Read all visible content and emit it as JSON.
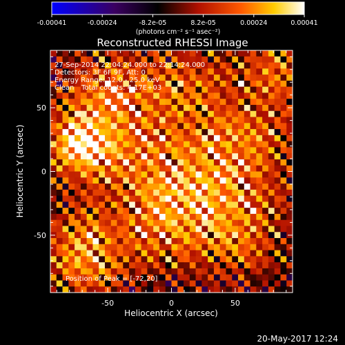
{
  "chart_data": {
    "type": "heatmap",
    "title": "Reconstructed RHESSI Image",
    "xlabel": "Heliocentric X (arcsec)",
    "ylabel": "Heliocentric Y (arcsec)",
    "xlim": [
      -95,
      95
    ],
    "ylim": [
      -95,
      95
    ],
    "x_ticks": [
      -50,
      0,
      50
    ],
    "y_ticks": [
      50,
      0,
      -50
    ],
    "colorbar": {
      "range": [
        -0.00041,
        0.00041
      ],
      "tick_labels": [
        "-0.00041",
        "-0.00024",
        "-8.2e-05",
        "8.2e-05",
        "0.00024",
        "0.00041"
      ],
      "unit_label": "(photons cm⁻² s⁻¹ asec⁻²)",
      "colormap": [
        "#0000ff",
        "#3a0060",
        "#000000",
        "#b01000",
        "#ff5a00",
        "#ffcc00",
        "#ffffff"
      ]
    },
    "annotations": {
      "time_range": "27-Sep-2014 22:04:24.000 to 22:14:24.000",
      "detectors": "Detectors: 3F 6F 9F, Att: 0",
      "energy_range": "Energy Range: 12.0 - 25.0 keV",
      "method": "Clean",
      "total_counts": "Total counts: 4.17E+03",
      "peak": "Position of Peak = [-72,20]"
    },
    "peak_position": [
      -72,
      20
    ]
  },
  "footer": {
    "date": "20-May-2017 12:24"
  }
}
